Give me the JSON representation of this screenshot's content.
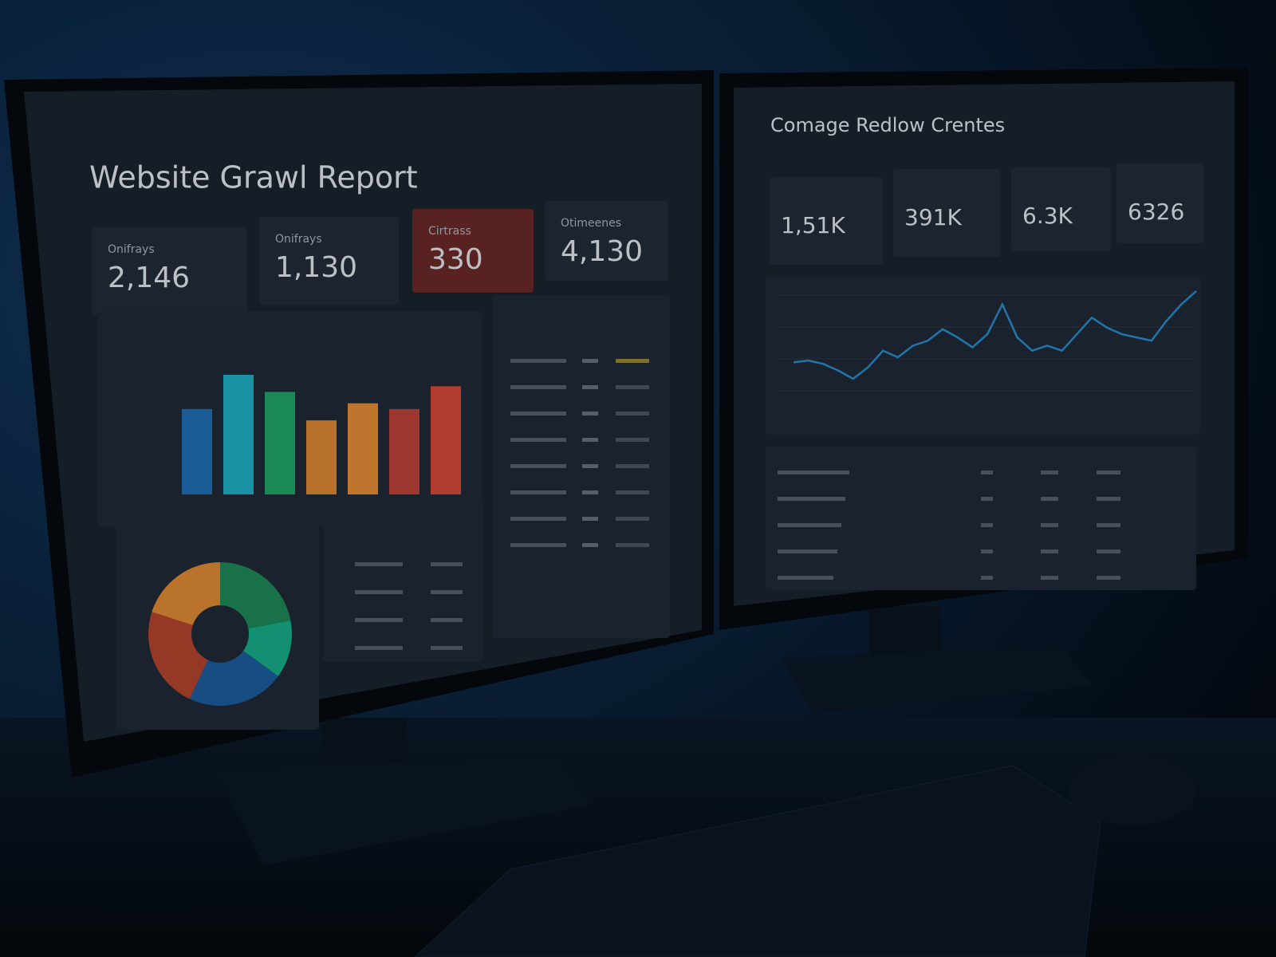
{
  "left_screen": {
    "title": "Website Grawl Report",
    "kpis": [
      {
        "label": "Onifrays",
        "value": "2,146"
      },
      {
        "label": "Onifrays",
        "value": "1,130"
      },
      {
        "label": "Cirtrass",
        "value": "330"
      },
      {
        "label": "Otimeenes",
        "value": "4,130"
      }
    ],
    "bar_chart": {
      "type": "bar",
      "values": [
        75,
        105,
        90,
        65,
        80,
        75,
        95
      ],
      "colors": [
        "#1f6fb5",
        "#1fb3c8",
        "#22a866",
        "#e08a35",
        "#e8913a",
        "#c0443a",
        "#d94a3a"
      ]
    },
    "donut": {
      "type": "pie",
      "values": [
        22,
        13,
        22,
        23,
        20
      ],
      "colors": [
        "#1f8a5a",
        "#18b08a",
        "#1d5fa0",
        "#b8452f",
        "#e38d35"
      ]
    }
  },
  "right_screen": {
    "title": "Comage Redlow Crentes",
    "kpis": [
      "1,51K",
      "391K",
      "6.3K",
      "6326"
    ],
    "line_chart": {
      "type": "line",
      "color": "#2a8fd0",
      "values": [
        45,
        46,
        44,
        40,
        35,
        42,
        52,
        48,
        55,
        58,
        65,
        60,
        54,
        62,
        80,
        60,
        52,
        55,
        52,
        62,
        72,
        66,
        62,
        60,
        58,
        70,
        80,
        88
      ]
    }
  }
}
